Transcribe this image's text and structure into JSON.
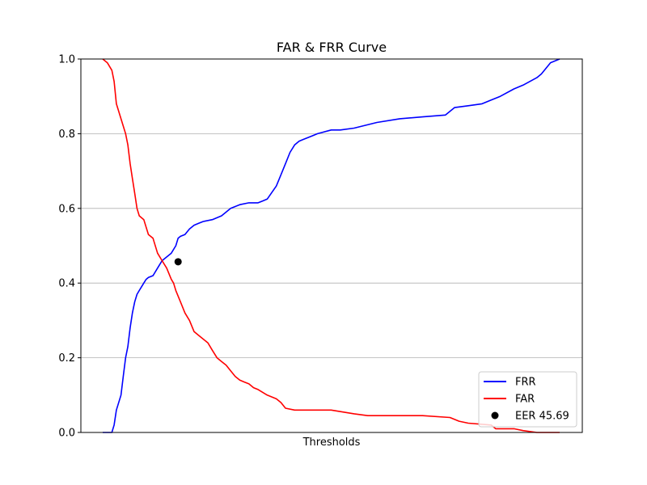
{
  "chart_data": {
    "type": "line",
    "title": "FAR & FRR Curve",
    "xlabel": "Thresholds",
    "ylabel": "",
    "xlim": [
      0,
      1
    ],
    "ylim": [
      0,
      1
    ],
    "yticks": [
      "0.0",
      "0.2",
      "0.4",
      "0.6",
      "0.8",
      "1.0"
    ],
    "grid": "horizontal",
    "legend_position": "bottom-right",
    "series": [
      {
        "name": "FRR",
        "color": "#0000ff",
        "x": [
          0.0,
          0.02,
          0.025,
          0.03,
          0.04,
          0.045,
          0.05,
          0.055,
          0.06,
          0.065,
          0.07,
          0.075,
          0.08,
          0.085,
          0.09,
          0.095,
          0.1,
          0.11,
          0.12,
          0.13,
          0.14,
          0.15,
          0.16,
          0.165,
          0.17,
          0.18,
          0.19,
          0.2,
          0.21,
          0.22,
          0.24,
          0.26,
          0.28,
          0.3,
          0.32,
          0.34,
          0.35,
          0.36,
          0.38,
          0.39,
          0.4,
          0.41,
          0.42,
          0.43,
          0.44,
          0.45,
          0.46,
          0.47,
          0.5,
          0.52,
          0.55,
          0.6,
          0.65,
          0.7,
          0.75,
          0.77,
          0.8,
          0.83,
          0.85,
          0.87,
          0.9,
          0.92,
          0.95,
          0.96,
          0.98,
          1.0
        ],
        "y": [
          0.0,
          0.0,
          0.02,
          0.06,
          0.1,
          0.15,
          0.2,
          0.23,
          0.28,
          0.32,
          0.35,
          0.37,
          0.38,
          0.39,
          0.4,
          0.41,
          0.415,
          0.42,
          0.44,
          0.46,
          0.47,
          0.48,
          0.5,
          0.52,
          0.525,
          0.53,
          0.545,
          0.555,
          0.56,
          0.565,
          0.57,
          0.58,
          0.6,
          0.61,
          0.615,
          0.615,
          0.62,
          0.625,
          0.66,
          0.69,
          0.72,
          0.75,
          0.77,
          0.78,
          0.785,
          0.79,
          0.795,
          0.8,
          0.81,
          0.81,
          0.815,
          0.83,
          0.84,
          0.845,
          0.85,
          0.87,
          0.875,
          0.88,
          0.89,
          0.9,
          0.92,
          0.93,
          0.95,
          0.96,
          0.99,
          1.0
        ]
      },
      {
        "name": "FAR",
        "color": "#ff0000",
        "x": [
          0.0,
          0.01,
          0.02,
          0.025,
          0.03,
          0.04,
          0.05,
          0.055,
          0.06,
          0.065,
          0.07,
          0.075,
          0.08,
          0.09,
          0.1,
          0.11,
          0.12,
          0.13,
          0.14,
          0.15,
          0.155,
          0.16,
          0.17,
          0.18,
          0.19,
          0.2,
          0.21,
          0.22,
          0.23,
          0.24,
          0.25,
          0.26,
          0.27,
          0.28,
          0.29,
          0.3,
          0.31,
          0.32,
          0.33,
          0.34,
          0.36,
          0.38,
          0.39,
          0.4,
          0.42,
          0.44,
          0.46,
          0.5,
          0.55,
          0.58,
          0.6,
          0.7,
          0.76,
          0.78,
          0.8,
          0.85,
          0.86,
          0.9,
          0.92,
          0.95,
          1.0
        ],
        "y": [
          1.0,
          0.99,
          0.97,
          0.94,
          0.88,
          0.84,
          0.8,
          0.77,
          0.72,
          0.68,
          0.64,
          0.6,
          0.58,
          0.57,
          0.53,
          0.52,
          0.48,
          0.46,
          0.44,
          0.41,
          0.4,
          0.38,
          0.35,
          0.32,
          0.3,
          0.27,
          0.26,
          0.25,
          0.24,
          0.22,
          0.2,
          0.19,
          0.18,
          0.165,
          0.15,
          0.14,
          0.135,
          0.13,
          0.12,
          0.115,
          0.1,
          0.09,
          0.08,
          0.065,
          0.06,
          0.06,
          0.06,
          0.06,
          0.05,
          0.045,
          0.045,
          0.045,
          0.04,
          0.03,
          0.025,
          0.02,
          0.01,
          0.01,
          0.005,
          0.0,
          0.0
        ]
      }
    ],
    "points": [
      {
        "name": "EER 45.69",
        "color": "#000000",
        "x": 0.165,
        "y": 0.457
      }
    ]
  }
}
